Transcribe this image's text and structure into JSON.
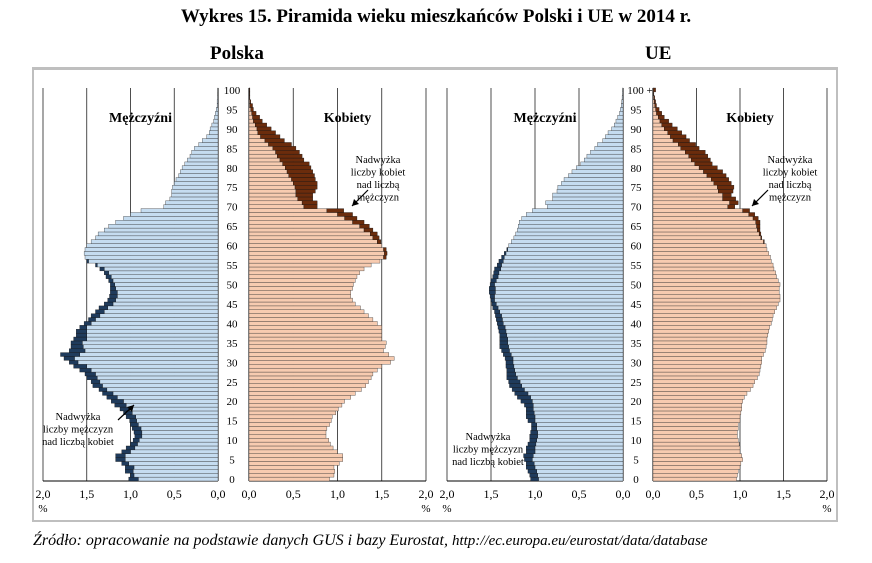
{
  "title": "Wykres 15. Piramida wieku mieszkańców Polski i UE w 2014 r.",
  "source": {
    "text": "Źródło: opracowanie na podstawie danych GUS i bazy Eurostat,",
    "url": "http://ec.europa.eu/eurostat/data/database"
  },
  "colors": {
    "male": "#c5dcf0",
    "male_excess": "#1f3b5c",
    "female": "#f7cbb0",
    "female_excess": "#6b2c0c",
    "grid": "#222222"
  },
  "chart_data": [
    {
      "type": "bar",
      "subtitle": "Polska",
      "male_label": "Mężczyźni",
      "female_label": "Kobiety",
      "unit": "%",
      "xlim": [
        0,
        2.0
      ],
      "xticks": [
        "2,0",
        "1,5",
        "1,0",
        "0,5",
        "0,0"
      ],
      "xticks_f": [
        "0,0",
        "0,5",
        "1,0",
        "1,5",
        "2,0"
      ],
      "age_ticks": [
        "0",
        "5",
        "10",
        "15",
        "20",
        "25",
        "30",
        "35",
        "40",
        "45",
        "50",
        "55",
        "60",
        "65",
        "70",
        "75",
        "80",
        "85",
        "90",
        "95",
        "100"
      ],
      "annotation_female": [
        "Nadwyżka",
        "liczby kobiet",
        "nad liczbą",
        "mężczyzn"
      ],
      "annotation_male": [
        "Nadwyżka",
        "liczby mężczyzn",
        "nad liczbą kobiet"
      ],
      "male": [
        1.02,
        1.0,
        1.06,
        1.06,
        1.1,
        1.17,
        1.17,
        1.1,
        1.05,
        1.0,
        0.97,
        0.95,
        0.96,
        0.98,
        1.0,
        1.01,
        1.05,
        1.08,
        1.12,
        1.18,
        1.22,
        1.27,
        1.32,
        1.36,
        1.43,
        1.45,
        1.5,
        1.52,
        1.58,
        1.65,
        1.7,
        1.76,
        1.8,
        1.7,
        1.68,
        1.68,
        1.65,
        1.62,
        1.62,
        1.58,
        1.53,
        1.48,
        1.45,
        1.4,
        1.36,
        1.3,
        1.26,
        1.24,
        1.23,
        1.23,
        1.23,
        1.25,
        1.28,
        1.3,
        1.35,
        1.4,
        1.5,
        1.52,
        1.53,
        1.52,
        1.5,
        1.45,
        1.4,
        1.37,
        1.3,
        1.25,
        1.17,
        1.08,
        1.0,
        0.88,
        0.62,
        0.6,
        0.55,
        0.53,
        0.53,
        0.52,
        0.5,
        0.48,
        0.45,
        0.43,
        0.41,
        0.38,
        0.35,
        0.32,
        0.3,
        0.27,
        0.22,
        0.18,
        0.13,
        0.1,
        0.09,
        0.07,
        0.05,
        0.04,
        0.03,
        0.02,
        0.01,
        0.01,
        0.005,
        0.003,
        0.002
      ],
      "female": [
        0.91,
        0.96,
        0.97,
        0.96,
        1.02,
        1.06,
        1.06,
        1.0,
        0.95,
        0.92,
        0.9,
        0.87,
        0.87,
        0.88,
        0.91,
        0.93,
        0.94,
        0.98,
        1.01,
        1.05,
        1.08,
        1.15,
        1.2,
        1.27,
        1.32,
        1.35,
        1.38,
        1.4,
        1.45,
        1.5,
        1.6,
        1.64,
        1.58,
        1.52,
        1.54,
        1.55,
        1.5,
        1.5,
        1.5,
        1.5,
        1.45,
        1.4,
        1.35,
        1.3,
        1.26,
        1.2,
        1.17,
        1.15,
        1.15,
        1.17,
        1.18,
        1.2,
        1.22,
        1.25,
        1.3,
        1.38,
        1.48,
        1.55,
        1.56,
        1.55,
        1.5,
        1.49,
        1.47,
        1.45,
        1.4,
        1.36,
        1.3,
        1.22,
        1.17,
        1.07,
        0.77,
        0.77,
        0.72,
        0.72,
        0.75,
        0.77,
        0.77,
        0.75,
        0.74,
        0.72,
        0.7,
        0.68,
        0.62,
        0.6,
        0.57,
        0.53,
        0.48,
        0.4,
        0.35,
        0.3,
        0.25,
        0.2,
        0.15,
        0.12,
        0.08,
        0.05,
        0.04,
        0.02,
        0.01,
        0.01,
        0.01
      ]
    },
    {
      "type": "bar",
      "subtitle": "UE",
      "male_label": "Mężczyźni",
      "female_label": "Kobiety",
      "unit": "%",
      "xlim": [
        0,
        2.0
      ],
      "xticks": [
        "2,0",
        "1,5",
        "1,0",
        "0,5",
        "0,0"
      ],
      "xticks_f": [
        "0,0",
        "0,5",
        "1,0",
        "1,5",
        "2,0"
      ],
      "age_ticks": [
        "0",
        "5",
        "10",
        "15",
        "20",
        "25",
        "30",
        "35",
        "40",
        "45",
        "50",
        "55",
        "60",
        "65",
        "70",
        "75",
        "80",
        "85",
        "90",
        "95",
        "100 +"
      ],
      "annotation_female": [
        "Nadwyżka",
        "liczby kobiet",
        "nad liczbą",
        "mężczyzn"
      ],
      "annotation_male": [
        "Nadwyżka",
        "liczby mężczyzn",
        "nad liczbą kobiet"
      ],
      "male": [
        1.05,
        1.06,
        1.08,
        1.1,
        1.1,
        1.12,
        1.13,
        1.1,
        1.1,
        1.08,
        1.06,
        1.06,
        1.05,
        1.04,
        1.04,
        1.08,
        1.1,
        1.1,
        1.1,
        1.12,
        1.16,
        1.2,
        1.23,
        1.26,
        1.29,
        1.3,
        1.32,
        1.32,
        1.32,
        1.33,
        1.33,
        1.34,
        1.36,
        1.38,
        1.4,
        1.4,
        1.4,
        1.4,
        1.41,
        1.42,
        1.43,
        1.44,
        1.45,
        1.46,
        1.48,
        1.49,
        1.5,
        1.51,
        1.52,
        1.52,
        1.51,
        1.5,
        1.48,
        1.47,
        1.46,
        1.43,
        1.41,
        1.38,
        1.35,
        1.32,
        1.3,
        1.27,
        1.24,
        1.22,
        1.2,
        1.19,
        1.18,
        1.15,
        1.1,
        1.03,
        0.86,
        0.88,
        0.8,
        0.8,
        0.75,
        0.74,
        0.7,
        0.67,
        0.62,
        0.58,
        0.53,
        0.48,
        0.44,
        0.41,
        0.37,
        0.32,
        0.29,
        0.23,
        0.2,
        0.17,
        0.13,
        0.1,
        0.08,
        0.06,
        0.04,
        0.03,
        0.02,
        0.015,
        0.01,
        0.005,
        0.005
      ],
      "female": [
        0.96,
        0.97,
        0.98,
        1.0,
        1.01,
        1.03,
        1.02,
        1.0,
        1.0,
        0.99,
        0.98,
        0.97,
        0.97,
        0.98,
        0.98,
        1.0,
        1.0,
        1.01,
        1.02,
        1.02,
        1.03,
        1.05,
        1.08,
        1.12,
        1.15,
        1.17,
        1.2,
        1.22,
        1.23,
        1.24,
        1.25,
        1.25,
        1.27,
        1.29,
        1.3,
        1.31,
        1.31,
        1.32,
        1.33,
        1.34,
        1.36,
        1.37,
        1.38,
        1.4,
        1.42,
        1.44,
        1.46,
        1.46,
        1.45,
        1.45,
        1.46,
        1.44,
        1.42,
        1.41,
        1.39,
        1.38,
        1.36,
        1.35,
        1.33,
        1.31,
        1.3,
        1.28,
        1.25,
        1.24,
        1.23,
        1.23,
        1.23,
        1.21,
        1.17,
        1.11,
        0.94,
        0.98,
        0.95,
        0.9,
        0.92,
        0.93,
        0.9,
        0.87,
        0.84,
        0.8,
        0.74,
        0.68,
        0.66,
        0.63,
        0.6,
        0.53,
        0.49,
        0.42,
        0.38,
        0.33,
        0.28,
        0.22,
        0.18,
        0.13,
        0.1,
        0.07,
        0.04,
        0.03,
        0.02,
        0.01,
        0.03
      ]
    }
  ]
}
